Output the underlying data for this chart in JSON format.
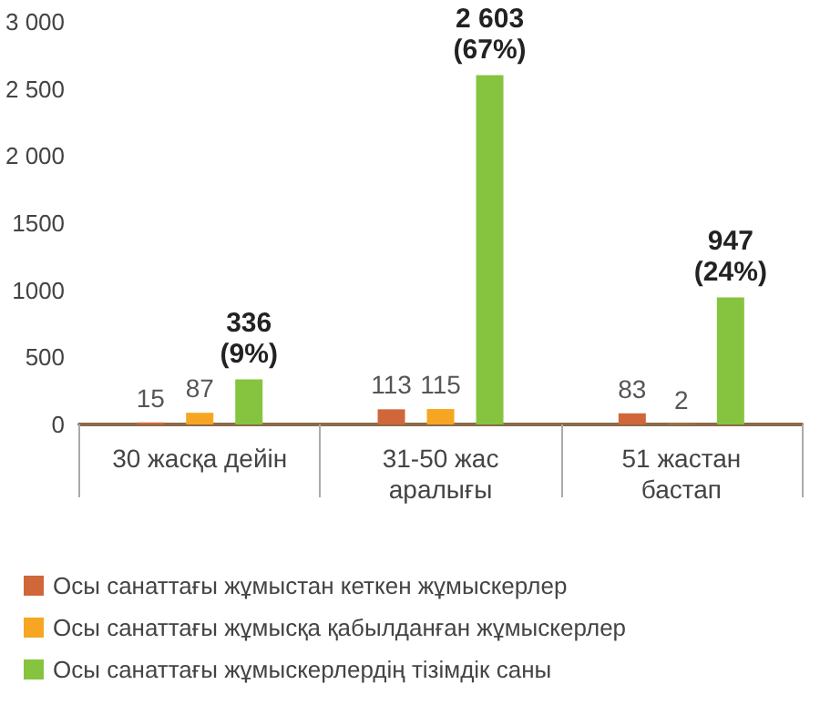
{
  "chart_data": {
    "type": "bar",
    "categories": [
      "30 жасқа дейін",
      "31-50 жас\nаралығы",
      "51 жастан\nбастап"
    ],
    "series": [
      {
        "name": "Осы санаттағы жұмыстан кеткен жұмыскерлер",
        "color": "#d0673a",
        "values": [
          15,
          113,
          83
        ],
        "value_labels": [
          "15",
          "113",
          "83"
        ]
      },
      {
        "name": "Осы санаттағы жұмысқа қабылданған жұмыскерлер",
        "color": "#f6a623",
        "values": [
          87,
          115,
          2
        ],
        "value_labels": [
          "87",
          "115",
          "2"
        ]
      },
      {
        "name": "Осы санаттағы жұмыскерлердің тізімдік саны",
        "color": "#86c440",
        "values": [
          336,
          2603,
          947
        ],
        "value_labels": [
          "336\n(9%)",
          "2 603\n(67%)",
          "947\n(24%)"
        ]
      }
    ],
    "ylim": [
      0,
      3000
    ],
    "yticks": [
      0,
      500,
      1000,
      1500,
      {
        "value": 2000,
        "label": "2 000"
      },
      {
        "value": 2500,
        "label": "2 500"
      },
      {
        "value": 3000,
        "label": "3 000"
      }
    ],
    "grid": false,
    "legend": "bottom"
  }
}
